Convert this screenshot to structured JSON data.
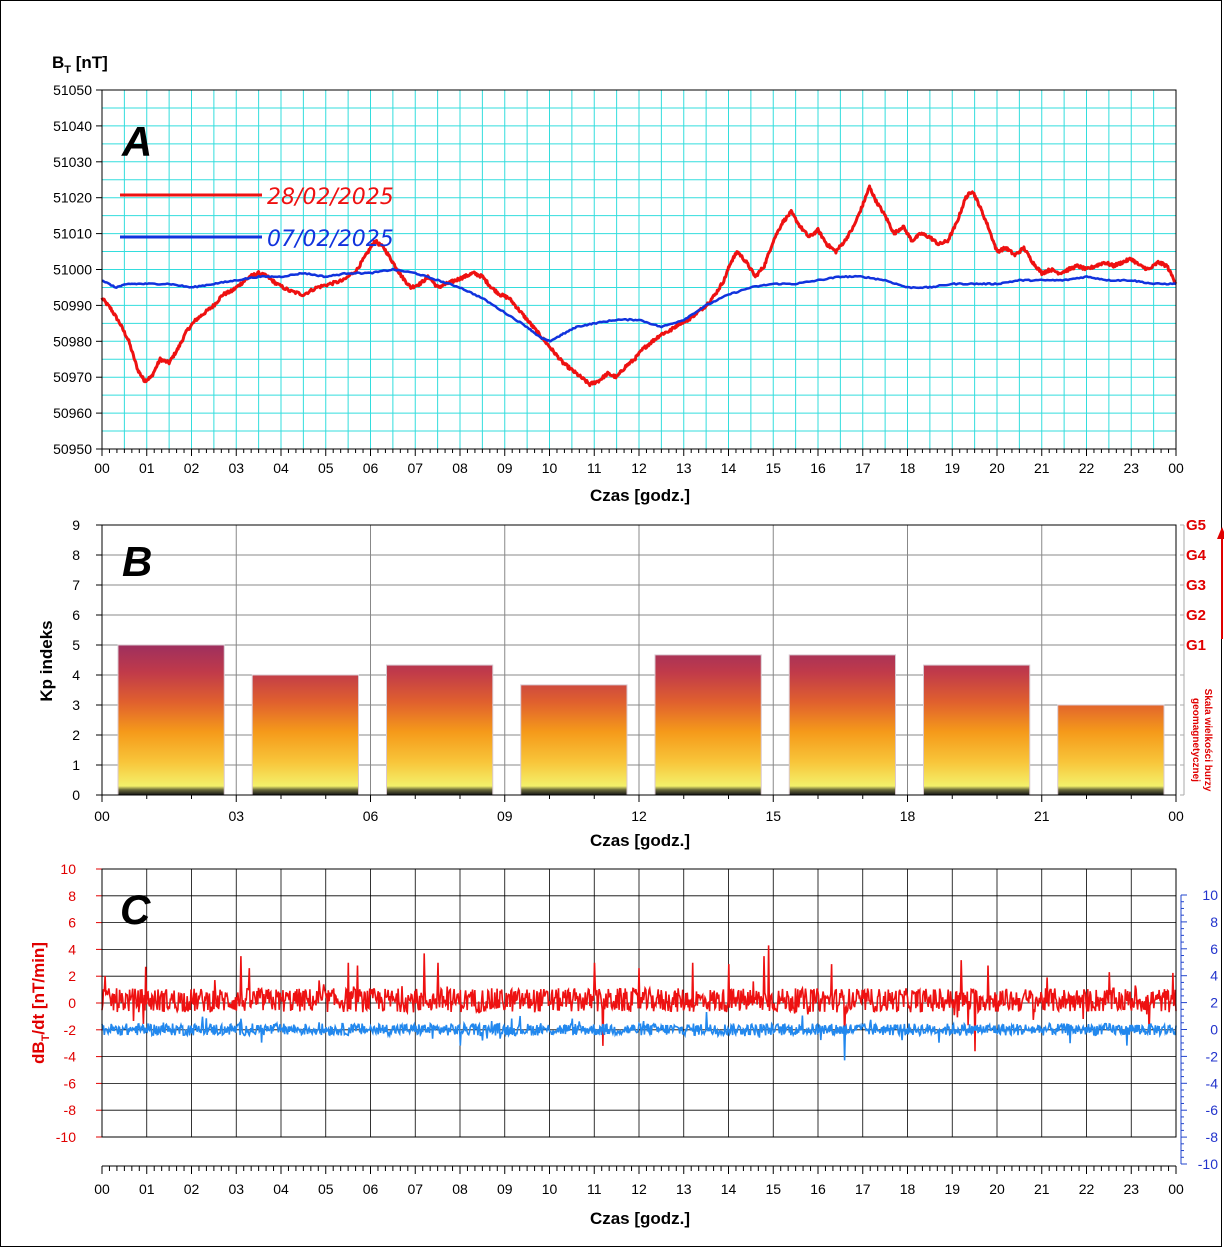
{
  "colors": {
    "series_red": "#ee1111",
    "series_blue": "#1133dd",
    "series_lightblue": "#2288ee",
    "grid_cyan": "#33dddd",
    "grid_gray": "#888888",
    "grid_dark": "#000000",
    "g_scale": "#e00000"
  },
  "chart_data": [
    {
      "type": "line",
      "panel_label": "A",
      "ylabel_main": "B",
      "ylabel_sub": "T",
      "ylabel_unit": "[nT]",
      "xlabel": "Czas [godz.]",
      "ylim": [
        50950,
        51050
      ],
      "y_ticks": [
        "50950",
        "50960",
        "50970",
        "50980",
        "50990",
        "51000",
        "51010",
        "51020",
        "51030",
        "51040",
        "51050"
      ],
      "x_ticks": [
        "00",
        "01",
        "02",
        "03",
        "04",
        "05",
        "06",
        "07",
        "08",
        "09",
        "10",
        "11",
        "12",
        "13",
        "14",
        "15",
        "16",
        "17",
        "18",
        "19",
        "20",
        "21",
        "22",
        "23",
        "00"
      ],
      "xlim_hours": [
        0,
        24
      ],
      "grid": true,
      "legend_position": "top-left",
      "series": [
        {
          "name": "28/02/2025",
          "color": "#ee1111",
          "x": [
            0,
            0.2,
            0.4,
            0.6,
            0.8,
            0.95,
            1.1,
            1.3,
            1.5,
            1.7,
            1.9,
            2.1,
            2.3,
            2.5,
            2.7,
            2.9,
            3.1,
            3.3,
            3.5,
            3.7,
            3.9,
            4.2,
            4.5,
            4.8,
            5.1,
            5.4,
            5.7,
            5.9,
            6.1,
            6.3,
            6.5,
            6.7,
            6.9,
            7.1,
            7.3,
            7.5,
            7.7,
            7.9,
            8.1,
            8.3,
            8.5,
            8.7,
            8.9,
            9.1,
            9.3,
            9.5,
            9.7,
            9.9,
            10.1,
            10.3,
            10.5,
            10.7,
            10.9,
            11.1,
            11.3,
            11.5,
            11.7,
            11.9,
            12.1,
            12.3,
            12.5,
            12.7,
            12.9,
            13.1,
            13.3,
            13.5,
            13.7,
            13.9,
            14.05,
            14.2,
            14.4,
            14.6,
            14.8,
            15.0,
            15.2,
            15.4,
            15.6,
            15.8,
            16.0,
            16.2,
            16.4,
            16.6,
            16.8,
            17.0,
            17.15,
            17.3,
            17.5,
            17.7,
            17.9,
            18.1,
            18.3,
            18.5,
            18.7,
            18.9,
            19.1,
            19.3,
            19.45,
            19.6,
            19.8,
            20.0,
            20.2,
            20.4,
            20.6,
            20.8,
            21.0,
            21.2,
            21.4,
            21.6,
            21.8,
            22.0,
            22.2,
            22.4,
            22.6,
            22.8,
            23.0,
            23.2,
            23.4,
            23.6,
            23.8,
            24.0
          ],
          "values": [
            50992,
            50989,
            50985,
            50980,
            50972,
            50969,
            50970,
            50975,
            50974,
            50978,
            50983,
            50986,
            50988,
            50990,
            50993,
            50994,
            50996,
            50998,
            50999,
            50998,
            50996,
            50994,
            50993,
            50995,
            50996,
            50997,
            51000,
            51004,
            51008,
            51006,
            51002,
            50998,
            50995,
            50996,
            50998,
            50995,
            50996,
            50997,
            50998,
            50999,
            50998,
            50995,
            50993,
            50992,
            50989,
            50986,
            50983,
            50980,
            50977,
            50974,
            50972,
            50970,
            50968,
            50969,
            50971,
            50970,
            50973,
            50975,
            50978,
            50980,
            50982,
            50983,
            50985,
            50986,
            50988,
            50990,
            50993,
            50997,
            51002,
            51005,
            51002,
            50998,
            51001,
            51008,
            51013,
            51016,
            51012,
            51009,
            51011,
            51007,
            51005,
            51008,
            51012,
            51018,
            51023,
            51019,
            51015,
            51010,
            51012,
            51008,
            51010,
            51009,
            51007,
            51008,
            51013,
            51020,
            51022,
            51018,
            51012,
            51005,
            51006,
            51004,
            51006,
            51002,
            50999,
            51000,
            50999,
            51000,
            51001,
            51000,
            51001,
            51002,
            51001,
            51002,
            51003,
            51001,
            51000,
            51002,
            51001,
            50996
          ]
        },
        {
          "name": "07/02/2025",
          "color": "#1133dd",
          "x": [
            0,
            0.3,
            0.6,
            1.0,
            1.5,
            2.0,
            2.5,
            3.0,
            3.5,
            4.0,
            4.5,
            5.0,
            5.5,
            6.0,
            6.5,
            7.0,
            7.5,
            8.0,
            8.5,
            9.0,
            9.5,
            9.8,
            10.0,
            10.3,
            10.6,
            11.0,
            11.5,
            12.0,
            12.5,
            13.0,
            13.5,
            14.0,
            14.5,
            15.0,
            15.5,
            16.0,
            16.5,
            17.0,
            17.5,
            18.0,
            18.5,
            19.0,
            19.5,
            20.0,
            20.5,
            21.0,
            21.5,
            22.0,
            22.5,
            23.0,
            23.5,
            24.0
          ],
          "values": [
            50997,
            50995,
            50996,
            50996,
            50996,
            50995,
            50996,
            50997,
            50998,
            50998,
            50999,
            50998,
            50999,
            50999,
            51000,
            50999,
            50997,
            50995,
            50992,
            50988,
            50984,
            50981,
            50980,
            50982,
            50984,
            50985,
            50986,
            50986,
            50984,
            50986,
            50990,
            50993,
            50995,
            50996,
            50996,
            50997,
            50998,
            50998,
            50997,
            50995,
            50995,
            50996,
            50996,
            50996,
            50997,
            50997,
            50997,
            50998,
            50997,
            50997,
            50996,
            50996
          ]
        }
      ]
    },
    {
      "type": "bar",
      "panel_label": "B",
      "ylabel": "Kp indeks",
      "xlabel": "Czas [godz.]",
      "ylim": [
        0,
        9
      ],
      "y_ticks": [
        "0",
        "1",
        "2",
        "3",
        "4",
        "5",
        "6",
        "7",
        "8",
        "9"
      ],
      "x_ticks": [
        "00",
        "03",
        "06",
        "09",
        "12",
        "15",
        "18",
        "21",
        "00"
      ],
      "categories": [
        "00-03",
        "03-06",
        "06-09",
        "09-12",
        "12-15",
        "15-18",
        "18-21",
        "21-00"
      ],
      "values": [
        5.0,
        4.0,
        4.33,
        3.67,
        4.67,
        4.67,
        4.33,
        3.0
      ],
      "grid": true,
      "g_scale_labels": [
        "G1",
        "G2",
        "G3",
        "G4",
        "G5"
      ],
      "g_scale_values": [
        5,
        6,
        7,
        8,
        9
      ],
      "side_label_line1": "Skala wielkości burzy",
      "side_label_line2": "geomagnetycznej"
    },
    {
      "type": "line",
      "panel_label": "C",
      "ylabel_main": "dB",
      "ylabel_sub": "T",
      "ylabel_unit": "/dt [nT/min]",
      "xlabel": "Czas [godz.]",
      "ylim_left": [
        -10,
        10
      ],
      "ylim_right": [
        -10,
        10
      ],
      "y_ticks_left": [
        "-10",
        "-8",
        "-6",
        "-4",
        "-2",
        "0",
        "2",
        "4",
        "6",
        "8",
        "10"
      ],
      "y_ticks_right": [
        "-10",
        "-8",
        "-6",
        "-4",
        "-2",
        "0",
        "2",
        "4",
        "6",
        "8",
        "10"
      ],
      "x_ticks": [
        "00",
        "01",
        "02",
        "03",
        "04",
        "05",
        "06",
        "07",
        "08",
        "09",
        "10",
        "11",
        "12",
        "13",
        "14",
        "15",
        "16",
        "17",
        "18",
        "19",
        "20",
        "21",
        "22",
        "23",
        "00"
      ],
      "series": [
        {
          "name": "28/02/2025",
          "axis": "left",
          "color": "#ee1111",
          "baseline": 0.2,
          "noise": 0.9,
          "spikes": [
            [
              0.97,
              2.7
            ],
            [
              3.1,
              3.5
            ],
            [
              3.3,
              2.6
            ],
            [
              5.5,
              3.0
            ],
            [
              5.7,
              2.8
            ],
            [
              7.2,
              3.7
            ],
            [
              7.5,
              3.0
            ],
            [
              11.0,
              3.0
            ],
            [
              11.2,
              -3.2
            ],
            [
              12.0,
              2.6
            ],
            [
              13.2,
              3.0
            ],
            [
              14.0,
              2.9
            ],
            [
              14.9,
              4.3
            ],
            [
              14.8,
              3.5
            ],
            [
              16.3,
              2.9
            ],
            [
              16.6,
              -2.7
            ],
            [
              19.2,
              3.2
            ],
            [
              19.5,
              -3.6
            ],
            [
              19.8,
              2.8
            ],
            [
              22.5,
              2.3
            ],
            [
              23.4,
              -2.2
            ]
          ]
        },
        {
          "name": "07/02/2025",
          "axis": "right",
          "color": "#2288ee",
          "baseline": 0.0,
          "noise": 0.45,
          "spikes": [
            [
              16.6,
              -2.3
            ],
            [
              13.5,
              1.3
            ],
            [
              22.9,
              -1.2
            ],
            [
              8.0,
              -1.2
            ],
            [
              3.1,
              0.8
            ]
          ]
        }
      ]
    }
  ]
}
